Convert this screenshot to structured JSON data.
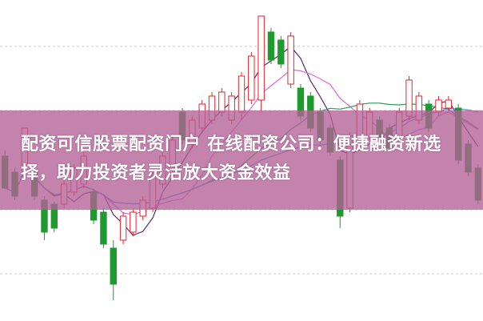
{
  "headline": "配资可信股票配资门户 在线配资公司：便捷融资新选择，助力投资者灵活放大资金效益",
  "colors": {
    "up": "#e0262b",
    "down": "#1e9a2e",
    "banner": "#b26096",
    "grid": "#c8c8c8"
  },
  "chart_data": {
    "type": "candlestick",
    "grid": "dashed horizontal",
    "candles_ohlc": [
      [
        205,
        212,
        165,
        165
      ],
      [
        185,
        190,
        150,
        155
      ],
      [
        185,
        240,
        180,
        240
      ],
      [
        185,
        190,
        150,
        155
      ],
      [
        150,
        155,
        100,
        110
      ],
      [
        145,
        148,
        110,
        115
      ],
      [
        145,
        175,
        140,
        170
      ],
      [
        160,
        195,
        155,
        190
      ],
      [
        170,
        210,
        165,
        205
      ],
      [
        160,
        165,
        120,
        125
      ],
      [
        135,
        140,
        90,
        95
      ],
      [
        90,
        100,
        25,
        45
      ],
      [
        100,
        135,
        95,
        130
      ],
      [
        110,
        140,
        105,
        135
      ],
      [
        130,
        155,
        125,
        150
      ],
      [
        140,
        185,
        135,
        180
      ],
      [
        170,
        210,
        165,
        205
      ],
      [
        190,
        230,
        185,
        225
      ],
      [
        260,
        265,
        220,
        225
      ],
      [
        220,
        255,
        215,
        250
      ],
      [
        240,
        275,
        235,
        270
      ],
      [
        250,
        285,
        245,
        280
      ],
      [
        260,
        290,
        255,
        285
      ],
      [
        250,
        285,
        245,
        280
      ],
      [
        260,
        310,
        250,
        305
      ],
      [
        275,
        335,
        270,
        330
      ],
      [
        275,
        380,
        260,
        380
      ],
      [
        360,
        365,
        320,
        325
      ],
      [
        350,
        355,
        315,
        320
      ],
      [
        295,
        360,
        290,
        355
      ],
      [
        290,
        295,
        250,
        255
      ],
      [
        280,
        285,
        235,
        240
      ],
      [
        260,
        265,
        220,
        225
      ],
      [
        240,
        245,
        205,
        210
      ],
      [
        200,
        205,
        115,
        130
      ],
      [
        140,
        235,
        135,
        230
      ],
      [
        225,
        275,
        220,
        270
      ],
      [
        230,
        265,
        225,
        260
      ],
      [
        250,
        255,
        220,
        225
      ],
      [
        240,
        245,
        210,
        215
      ],
      [
        230,
        265,
        225,
        260
      ],
      [
        255,
        305,
        250,
        300
      ],
      [
        250,
        285,
        245,
        280
      ],
      [
        270,
        275,
        235,
        240
      ],
      [
        260,
        280,
        255,
        275
      ],
      [
        265,
        280,
        260,
        275
      ],
      [
        265,
        270,
        195,
        200
      ],
      [
        220,
        225,
        180,
        185
      ],
      [
        190,
        195,
        145,
        150
      ]
    ],
    "moving_averages": [
      {
        "period": 5,
        "color": "#5a2a6a"
      },
      {
        "period": 10,
        "color": "#e06ad8"
      },
      {
        "period": 20,
        "color": "#2a9a5a"
      },
      {
        "period": 30,
        "color": "#4a8ad0"
      }
    ]
  }
}
